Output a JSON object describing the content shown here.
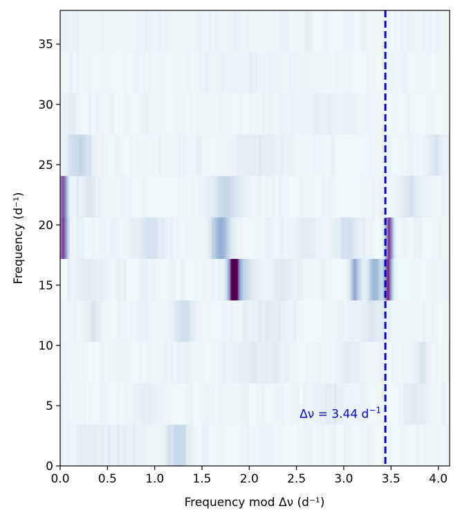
{
  "chart_data": {
    "type": "heatmap",
    "title": "",
    "xlabel": "Frequency mod Δν (d⁻¹)",
    "ylabel": "Frequency (d⁻¹)",
    "xlim": [
      0,
      4.12
    ],
    "ylim": [
      0,
      37.8
    ],
    "x_ticks": [
      "0.0",
      "0.5",
      "1.0",
      "1.5",
      "2.0",
      "2.5",
      "3.0",
      "3.5",
      "4.0"
    ],
    "y_ticks": [
      "0",
      "5",
      "10",
      "15",
      "20",
      "25",
      "30",
      "35"
    ],
    "colormap": "BuPu",
    "colors": {
      "low": "#f7fcfd",
      "mid": "#8c96c6",
      "high": "#4d004b",
      "annotation": "#0000cc"
    },
    "delta_nu": 3.44,
    "row_height": 3.44,
    "rows": [
      {
        "y": [
          0.0,
          3.44
        ],
        "peaks": [
          [
            1.25,
            0.08,
            0.22
          ],
          [
            0.45,
            0.3,
            0.05
          ]
        ]
      },
      {
        "y": [
          3.44,
          6.88
        ],
        "peaks": [
          [
            3.75,
            0.08,
            0.1
          ],
          [
            0.9,
            0.1,
            0.06
          ],
          [
            2.9,
            0.1,
            0.06
          ]
        ]
      },
      {
        "y": [
          6.88,
          10.32
        ],
        "peaks": [
          [
            2.1,
            0.2,
            0.08
          ],
          [
            3.05,
            0.08,
            0.08
          ],
          [
            3.82,
            0.05,
            0.12
          ]
        ]
      },
      {
        "y": [
          10.32,
          13.76
        ],
        "peaks": [
          [
            1.3,
            0.08,
            0.18
          ],
          [
            0.35,
            0.06,
            0.12
          ],
          [
            3.3,
            0.1,
            0.12
          ],
          [
            2.2,
            0.15,
            0.08
          ]
        ]
      },
      {
        "y": [
          13.76,
          17.2
        ],
        "peaks": [
          [
            1.84,
            0.04,
            1.0
          ],
          [
            1.92,
            0.1,
            0.22
          ],
          [
            3.12,
            0.04,
            0.42
          ],
          [
            3.33,
            0.05,
            0.42
          ],
          [
            3.47,
            0.03,
            0.8
          ],
          [
            2.35,
            0.08,
            0.12
          ],
          [
            0.3,
            0.1,
            0.1
          ]
        ]
      },
      {
        "y": [
          17.2,
          20.64
        ],
        "peaks": [
          [
            0.03,
            0.035,
            0.72
          ],
          [
            1.7,
            0.07,
            0.45
          ],
          [
            3.48,
            0.03,
            0.78
          ],
          [
            0.95,
            0.1,
            0.15
          ],
          [
            3.05,
            0.1,
            0.16
          ],
          [
            2.6,
            0.08,
            0.1
          ]
        ]
      },
      {
        "y": [
          20.64,
          24.08
        ],
        "peaks": [
          [
            0.03,
            0.035,
            0.72
          ],
          [
            1.75,
            0.12,
            0.2
          ],
          [
            0.3,
            0.08,
            0.1
          ],
          [
            3.7,
            0.1,
            0.12
          ]
        ]
      },
      {
        "y": [
          24.08,
          27.52
        ],
        "peaks": [
          [
            0.2,
            0.1,
            0.2
          ],
          [
            2.1,
            0.2,
            0.08
          ],
          [
            4.0,
            0.06,
            0.1
          ]
        ]
      },
      {
        "y": [
          27.52,
          30.96
        ],
        "peaks": [
          [
            0.1,
            0.05,
            0.08
          ],
          [
            2.7,
            0.3,
            0.04
          ]
        ]
      },
      {
        "y": [
          30.96,
          34.4
        ],
        "peaks": [
          [
            2.0,
            0.4,
            0.03
          ]
        ]
      },
      {
        "y": [
          34.4,
          37.84
        ],
        "peaks": [
          [
            1.0,
            0.6,
            0.02
          ]
        ]
      }
    ],
    "annotation": {
      "text_prefix": "Δν = 3.44 d",
      "text_superscript": "−1",
      "x": 3.44,
      "line_style": "dashed"
    }
  }
}
